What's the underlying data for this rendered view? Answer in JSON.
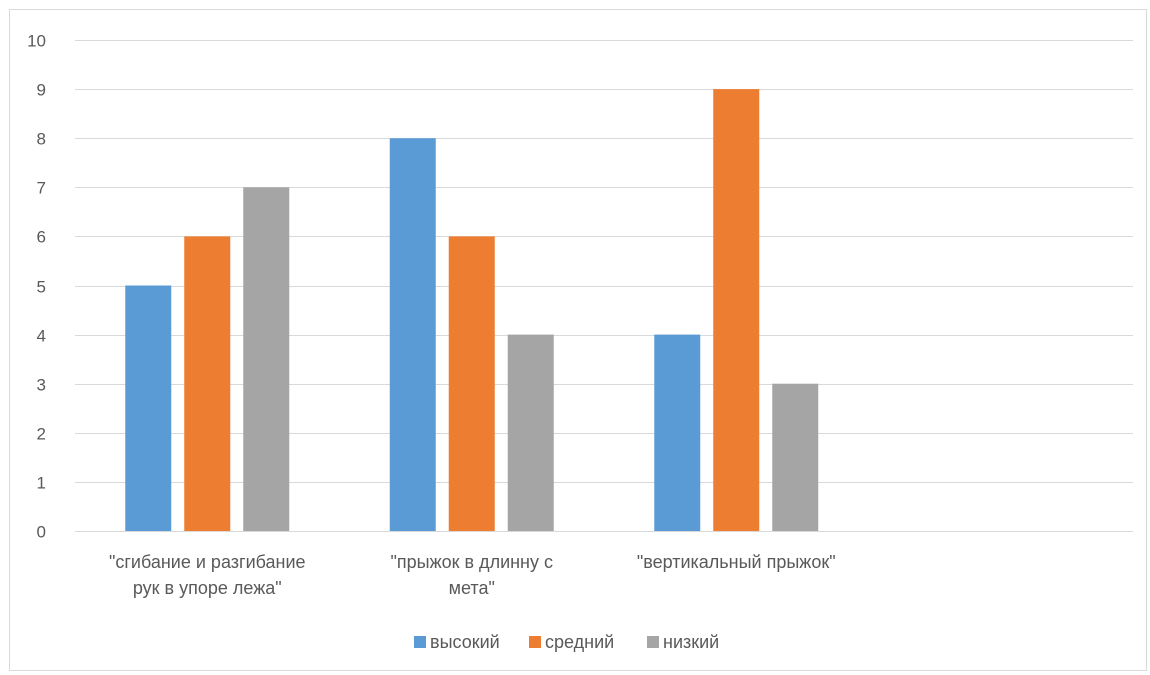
{
  "chart_data": {
    "type": "bar",
    "title": "",
    "xlabel": "",
    "ylabel": "",
    "ylim": [
      0,
      10
    ],
    "yticks": [
      0,
      1,
      2,
      3,
      4,
      5,
      6,
      7,
      8,
      9,
      10
    ],
    "grid": true,
    "legend_position": "bottom",
    "categories": [
      [
        "\"сгибание и разгибание",
        "рук в упоре лежа\""
      ],
      [
        "\"прыжок в длинну с",
        "мета\""
      ],
      [
        "\"вертикальный прыжок\""
      ],
      [
        ""
      ]
    ],
    "series": [
      {
        "name": "высокий",
        "color": "#5b9bd5",
        "values": [
          5,
          8,
          4,
          null
        ]
      },
      {
        "name": "средний",
        "color": "#ed7d31",
        "values": [
          6,
          6,
          9,
          null
        ]
      },
      {
        "name": "низкий",
        "color": "#a5a5a5",
        "values": [
          7,
          4,
          3,
          null
        ]
      }
    ]
  }
}
